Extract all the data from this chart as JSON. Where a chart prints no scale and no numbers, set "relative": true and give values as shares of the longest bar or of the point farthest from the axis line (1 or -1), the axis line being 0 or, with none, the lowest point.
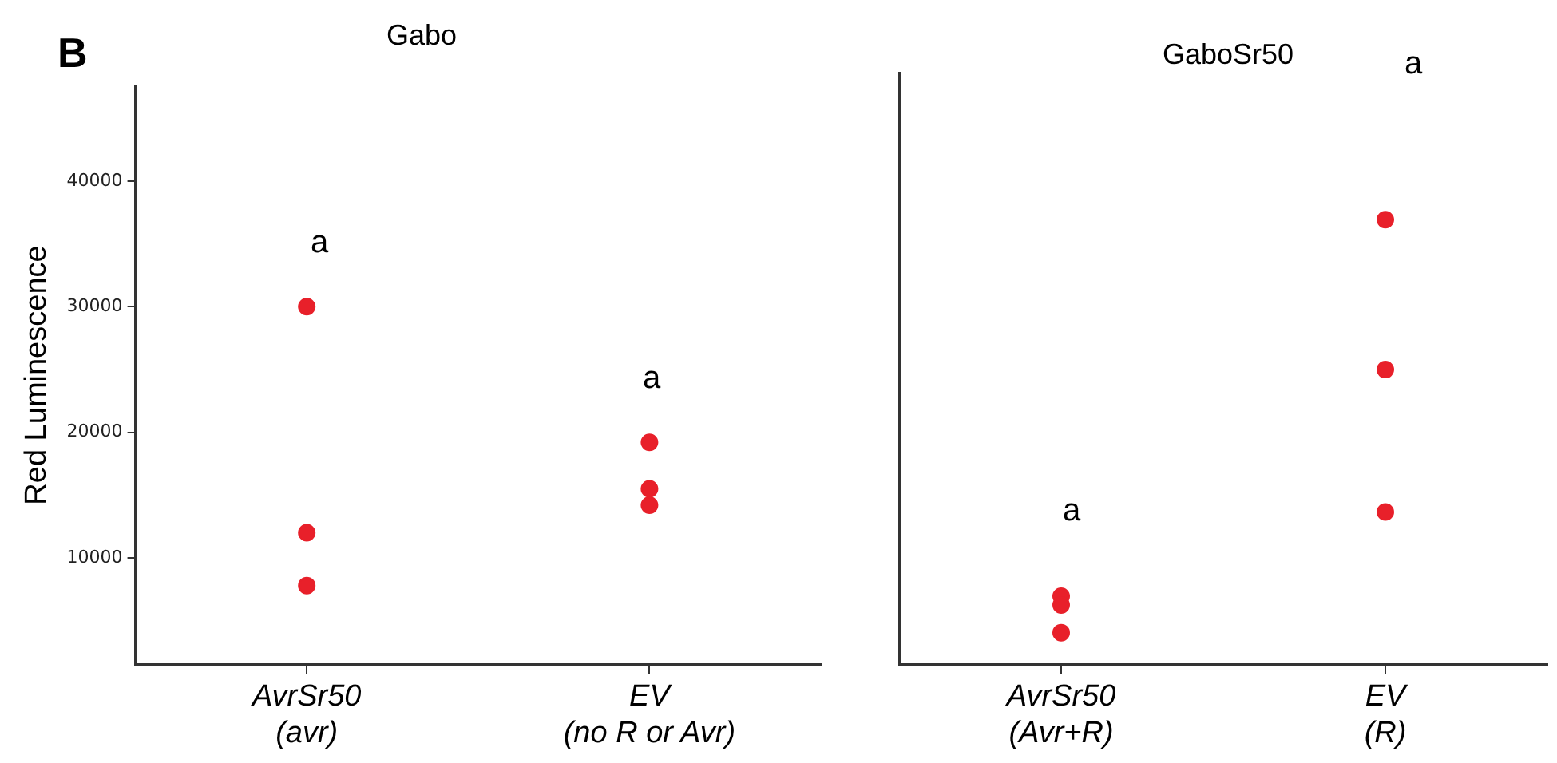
{
  "chart_data": [
    {
      "type": "scatter",
      "title": "Gabo",
      "ylabel": "Red Luminescence",
      "categories": [
        "AvrSr50\n(avr)",
        "EV\n(no R or Avr)"
      ],
      "series": [
        {
          "color": "#e8202a",
          "x": [
            "AvrSr50\n(avr)",
            "AvrSr50\n(avr)",
            "AvrSr50\n(avr)",
            "EV\n(no R or Avr)",
            "EV\n(no R or Avr)",
            "EV\n(no R or Avr)"
          ],
          "values": [
            30000,
            12000,
            7800,
            19200,
            15500,
            14200
          ]
        }
      ],
      "ylim": [
        1500,
        47600
      ],
      "yticks": [
        10000,
        20000,
        30000,
        40000
      ],
      "marker": "circle",
      "grid": false,
      "annotations": [
        "B",
        "a",
        "a"
      ]
    },
    {
      "type": "scatter",
      "title": "GaboSr50",
      "relative": true,
      "tick_labels": "x",
      "categories": [
        "AvrSr50\n(Avr+R)",
        "EV\n(R)"
      ],
      "series": [
        {
          "color": "#e8202a",
          "x": [
            "AvrSr50\n(Avr+R)",
            "AvrSr50\n(Avr+R)",
            "AvrSr50\n(Avr+R)",
            "EV\n(R)",
            "EV\n(R)",
            "EV\n(R)"
          ],
          "values": [
            0.154,
            0.134,
            0.072,
            1,
            0.663,
            0.343
          ]
        }
      ],
      "marker": "circle",
      "grid": false,
      "annotations": [
        "a",
        "a"
      ]
    }
  ]
}
